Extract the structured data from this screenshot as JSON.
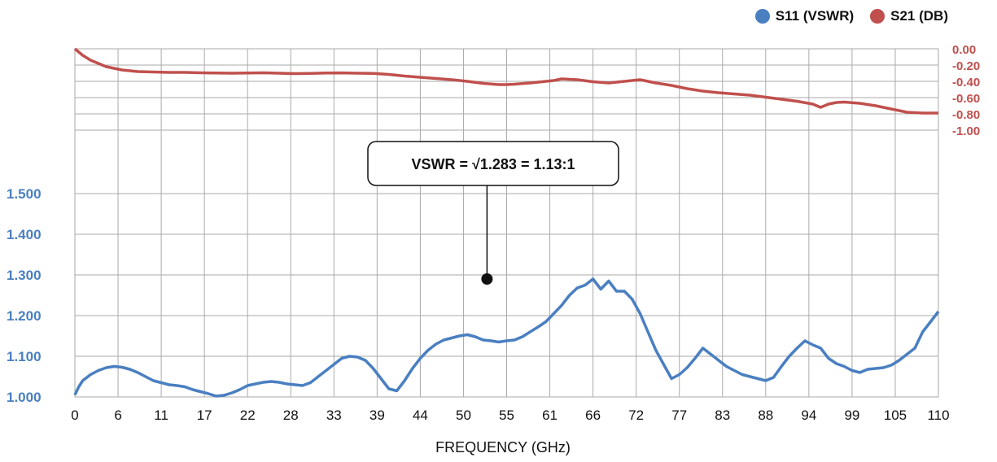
{
  "colors": {
    "s11": "#4a7fc1",
    "s21": "#c0504d",
    "grid": "#aaaaaa",
    "axis_left_labels": "#4a7fc1",
    "axis_right_labels": "#c0504d"
  },
  "chart_data": {
    "type": "line",
    "xlabel": "FREQUENCY (GHz)",
    "x_tick_labels": [
      "0",
      "6",
      "11",
      "17",
      "22",
      "28",
      "33",
      "39",
      "44",
      "50",
      "55",
      "61",
      "66",
      "72",
      "77",
      "83",
      "88",
      "94",
      "99",
      "105",
      "110"
    ],
    "xlim": [
      0,
      110
    ],
    "left_axis": {
      "tick_labels": [
        "1.000",
        "1.100",
        "1.200",
        "1.300",
        "1.400",
        "1.500"
      ],
      "ylim": [
        1.0,
        1.5
      ]
    },
    "right_axis": {
      "tick_labels": [
        "0.00",
        "-0.20",
        "-0.40",
        "-0.60",
        "-0.80",
        "-1.00"
      ],
      "ylim": [
        -1.0,
        0.0
      ]
    },
    "legend": [
      "S11 (VSWR)",
      "S21 (DB)"
    ],
    "annotation": {
      "text": "VSWR = √1.283 = 1.13:1",
      "x": 52.5,
      "y": 1.29
    },
    "grid": true,
    "series": [
      {
        "name": "S11 (VSWR)",
        "axis": "left",
        "points": [
          [
            0,
            1.005
          ],
          [
            0.5,
            1.025
          ],
          [
            1,
            1.04
          ],
          [
            2,
            1.055
          ],
          [
            3,
            1.065
          ],
          [
            4,
            1.072
          ],
          [
            5,
            1.075
          ],
          [
            6,
            1.073
          ],
          [
            7,
            1.068
          ],
          [
            8,
            1.06
          ],
          [
            9,
            1.05
          ],
          [
            10,
            1.04
          ],
          [
            11,
            1.035
          ],
          [
            12,
            1.03
          ],
          [
            13,
            1.028
          ],
          [
            14,
            1.025
          ],
          [
            15,
            1.018
          ],
          [
            16,
            1.013
          ],
          [
            17,
            1.008
          ],
          [
            18,
            1.002
          ],
          [
            19,
            1.004
          ],
          [
            20,
            1.01
          ],
          [
            21,
            1.018
          ],
          [
            22,
            1.028
          ],
          [
            23,
            1.032
          ],
          [
            24,
            1.036
          ],
          [
            25,
            1.038
          ],
          [
            26,
            1.036
          ],
          [
            27,
            1.032
          ],
          [
            28,
            1.03
          ],
          [
            29,
            1.028
          ],
          [
            30,
            1.035
          ],
          [
            31,
            1.05
          ],
          [
            32,
            1.065
          ],
          [
            33,
            1.08
          ],
          [
            34,
            1.095
          ],
          [
            35,
            1.1
          ],
          [
            36,
            1.098
          ],
          [
            37,
            1.09
          ],
          [
            38,
            1.07
          ],
          [
            39,
            1.045
          ],
          [
            40,
            1.02
          ],
          [
            41,
            1.015
          ],
          [
            42,
            1.04
          ],
          [
            43,
            1.07
          ],
          [
            44,
            1.095
          ],
          [
            45,
            1.115
          ],
          [
            46,
            1.13
          ],
          [
            47,
            1.14
          ],
          [
            48,
            1.145
          ],
          [
            49,
            1.15
          ],
          [
            50,
            1.153
          ],
          [
            51,
            1.148
          ],
          [
            52,
            1.14
          ],
          [
            53,
            1.138
          ],
          [
            54,
            1.135
          ],
          [
            55,
            1.138
          ],
          [
            56,
            1.14
          ],
          [
            57,
            1.148
          ],
          [
            58,
            1.16
          ],
          [
            59,
            1.172
          ],
          [
            60,
            1.185
          ],
          [
            61,
            1.205
          ],
          [
            62,
            1.225
          ],
          [
            63,
            1.25
          ],
          [
            64,
            1.268
          ],
          [
            65,
            1.275
          ],
          [
            66,
            1.29
          ],
          [
            67,
            1.265
          ],
          [
            68,
            1.285
          ],
          [
            69,
            1.26
          ],
          [
            70,
            1.26
          ],
          [
            71,
            1.24
          ],
          [
            72,
            1.205
          ],
          [
            73,
            1.16
          ],
          [
            74,
            1.115
          ],
          [
            75,
            1.08
          ],
          [
            76,
            1.045
          ],
          [
            77,
            1.055
          ],
          [
            78,
            1.072
          ],
          [
            79,
            1.095
          ],
          [
            80,
            1.12
          ],
          [
            81,
            1.105
          ],
          [
            82,
            1.09
          ],
          [
            83,
            1.075
          ],
          [
            84,
            1.065
          ],
          [
            85,
            1.055
          ],
          [
            86,
            1.05
          ],
          [
            87,
            1.045
          ],
          [
            88,
            1.04
          ],
          [
            89,
            1.048
          ],
          [
            90,
            1.075
          ],
          [
            91,
            1.1
          ],
          [
            92,
            1.12
          ],
          [
            93,
            1.138
          ],
          [
            94,
            1.128
          ],
          [
            95,
            1.12
          ],
          [
            96,
            1.095
          ],
          [
            97,
            1.082
          ],
          [
            98,
            1.075
          ],
          [
            99,
            1.065
          ],
          [
            100,
            1.06
          ],
          [
            101,
            1.068
          ],
          [
            102,
            1.07
          ],
          [
            103,
            1.072
          ],
          [
            104,
            1.078
          ],
          [
            105,
            1.09
          ],
          [
            106,
            1.105
          ],
          [
            107,
            1.12
          ],
          [
            108,
            1.16
          ],
          [
            109,
            1.185
          ],
          [
            110,
            1.21
          ]
        ]
      },
      {
        "name": "S21 (DB)",
        "axis": "right",
        "points": [
          [
            0,
            0.0
          ],
          [
            1,
            -0.08
          ],
          [
            2,
            -0.14
          ],
          [
            3,
            -0.18
          ],
          [
            4,
            -0.22
          ],
          [
            5,
            -0.24
          ],
          [
            6,
            -0.26
          ],
          [
            8,
            -0.28
          ],
          [
            10,
            -0.285
          ],
          [
            12,
            -0.29
          ],
          [
            14,
            -0.29
          ],
          [
            16,
            -0.295
          ],
          [
            18,
            -0.298
          ],
          [
            20,
            -0.3
          ],
          [
            22,
            -0.298
          ],
          [
            24,
            -0.295
          ],
          [
            26,
            -0.3
          ],
          [
            28,
            -0.305
          ],
          [
            30,
            -0.302
          ],
          [
            32,
            -0.298
          ],
          [
            34,
            -0.296
          ],
          [
            36,
            -0.3
          ],
          [
            38,
            -0.302
          ],
          [
            40,
            -0.315
          ],
          [
            42,
            -0.335
          ],
          [
            44,
            -0.35
          ],
          [
            46,
            -0.365
          ],
          [
            48,
            -0.38
          ],
          [
            50,
            -0.4
          ],
          [
            52,
            -0.425
          ],
          [
            54,
            -0.44
          ],
          [
            55,
            -0.44
          ],
          [
            56,
            -0.435
          ],
          [
            58,
            -0.42
          ],
          [
            60,
            -0.4
          ],
          [
            61,
            -0.39
          ],
          [
            62,
            -0.37
          ],
          [
            63,
            -0.375
          ],
          [
            64,
            -0.38
          ],
          [
            66,
            -0.405
          ],
          [
            68,
            -0.42
          ],
          [
            70,
            -0.4
          ],
          [
            71,
            -0.39
          ],
          [
            72,
            -0.38
          ],
          [
            74,
            -0.42
          ],
          [
            76,
            -0.45
          ],
          [
            78,
            -0.49
          ],
          [
            80,
            -0.52
          ],
          [
            82,
            -0.54
          ],
          [
            84,
            -0.555
          ],
          [
            86,
            -0.57
          ],
          [
            88,
            -0.595
          ],
          [
            90,
            -0.62
          ],
          [
            92,
            -0.645
          ],
          [
            94,
            -0.68
          ],
          [
            95,
            -0.72
          ],
          [
            96,
            -0.68
          ],
          [
            97,
            -0.66
          ],
          [
            98,
            -0.655
          ],
          [
            100,
            -0.67
          ],
          [
            102,
            -0.7
          ],
          [
            104,
            -0.74
          ],
          [
            106,
            -0.78
          ],
          [
            108,
            -0.79
          ],
          [
            110,
            -0.79
          ]
        ]
      }
    ]
  }
}
